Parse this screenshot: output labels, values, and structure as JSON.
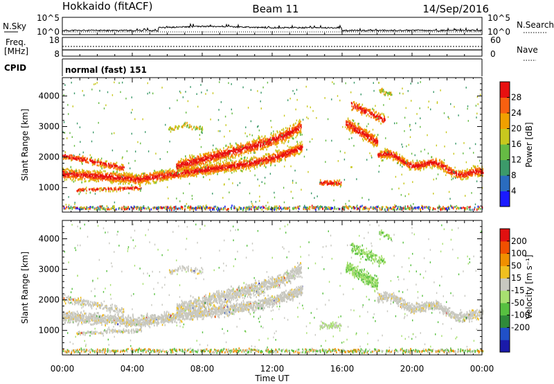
{
  "header": {
    "radar": "Hokkaido (fitACF)",
    "beam": "Beam 11",
    "date": "14/Sep/2016"
  },
  "top_panels": {
    "nsky": {
      "label": "N.Sky",
      "y_ticks": [
        "10^5",
        "10^0"
      ],
      "right_ticks": [
        "10^5",
        "10^0"
      ],
      "right_label": "N.Search"
    },
    "freq": {
      "label_line1": "Freq.",
      "label_line2": "[MHz]",
      "y_ticks": [
        "18",
        "8"
      ],
      "right_ticks": [
        "60",
        "0"
      ],
      "right_label": "Nave"
    },
    "cpid": {
      "label": "CPID",
      "text": "normal (fast) 151"
    }
  },
  "chart_data": [
    {
      "type": "heatmap",
      "name": "power",
      "ylabel": "Slant Range [km]",
      "xlabel": "",
      "x_ticks": [
        "00:00",
        "04:00",
        "08:00",
        "12:00",
        "16:00",
        "20:00",
        "00:00"
      ],
      "xlim_hours": [
        0,
        24
      ],
      "ylim": [
        200,
        4600
      ],
      "y_ticks": [
        1000,
        2000,
        3000,
        4000
      ],
      "colorbar": {
        "label": "Power [dB]",
        "ticks": [
          4,
          8,
          12,
          16,
          20,
          24,
          28
        ],
        "range": [
          0,
          32
        ],
        "colors": [
          "#1a1aff",
          "#2a6cbf",
          "#3c9a6a",
          "#66bb44",
          "#c8c81e",
          "#f0a000",
          "#f86010",
          "#e81010"
        ]
      }
    },
    {
      "type": "heatmap",
      "name": "velocity",
      "ylabel": "Slant Range [km]",
      "xlabel": "Time UT",
      "x_ticks": [
        "00:00",
        "04:00",
        "08:00",
        "12:00",
        "16:00",
        "20:00",
        "00:00"
      ],
      "xlim_hours": [
        0,
        24
      ],
      "ylim": [
        200,
        4600
      ],
      "y_ticks": [
        1000,
        2000,
        3000,
        4000
      ],
      "colorbar": {
        "label": "Velocity [m s⁻¹]",
        "ticks": [
          200,
          100,
          50,
          15,
          -15,
          -50,
          -100,
          -200
        ],
        "colors": [
          "#1a1aaa",
          "#2050c8",
          "#2f8a3a",
          "#57c040",
          "#a8e070",
          "#c8c8c0",
          "#f0c020",
          "#f09000",
          "#f05000",
          "#e01010"
        ]
      }
    }
  ]
}
